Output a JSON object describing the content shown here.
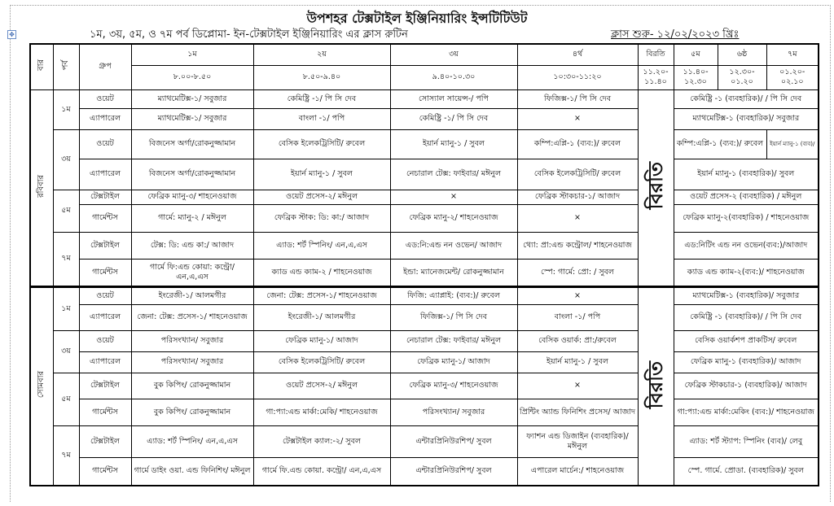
{
  "title": "উপশহর টেক্সটাইল ইঞ্জিনিয়ারিং ইন্সটিটিউট",
  "subtitle": "১ম, ৩য়, ৫ম, ও ৭ম পর্ব ডিপ্লোমা- ইন-টেক্সটাইল ইঞ্জিনিয়ারিং এর ক্লাস রুটিন",
  "class_start": "ক্লাস শুরু- ১২/০২/২০২৩ খ্রিঃ",
  "header": {
    "day": "বার",
    "semester": "পর্ব",
    "group": "গ্রুপ",
    "periods": [
      {
        "label": "১ম",
        "time": "৮.০০-৮.৫০"
      },
      {
        "label": "২য়",
        "time": "৮.৫০-৯.৪০"
      },
      {
        "label": "৩য়",
        "time": "৯.৪০-১০.৩০"
      },
      {
        "label": "৪র্থ",
        "time": "১০:৩০-১১:২০"
      },
      {
        "label": "বিরতি",
        "time": "১১.২০- ১১.৪০"
      },
      {
        "label": "৫ম",
        "time": "১১.৪০- ১২.৩০"
      },
      {
        "label": "৬ষ্ঠ",
        "time": "১২.৩০- ০১.২০"
      },
      {
        "label": "৭ম",
        "time": "০১.২০- ০২.১০"
      }
    ]
  },
  "break_label": "বিরতি",
  "days": [
    {
      "name": "রবিবার",
      "rows": [
        {
          "sem": "১ম",
          "group": "ওয়েট",
          "cells": [
            "ম্যাথমেটিক্স-১/ সবুজার",
            "কেমিষ্ট্রি -১/ পি সি দেব",
            "সোস্যাল সায়েন্স-/ পপি",
            "ফিজিক্স-১/ পি সি দেব",
            "কেমিষ্ট্রি -১ (ব্যবহারিক)/ / পি সি দেব"
          ]
        },
        {
          "sem": "",
          "group": "এ্যাপারেল",
          "cells": [
            "ম্যাথমেটিক্স-১/ সবুজার",
            "বাংলা -১/ পপি",
            "কেমিষ্ট্রি -১/ পি সি দেব",
            "×",
            "ম্যাথমেটিক্স-১ (ব্যবহারিক)/ সবুজার"
          ]
        },
        {
          "sem": "৩য়",
          "group": "ওয়েট",
          "cells": [
            "বিজনেস অর্গা/রোকনুজ্জামান",
            "বেসিক ইলেকট্রিসিটি/ রুবেল",
            "ইয়ার্ন ম্যানু-১ / সুবল",
            "কম্পি:এপ্লি-১ (ব্যব:)/ রুবেল",
            "কম্পি:এপ্লি-১ (ব্যব:)/ রুবেল"
          ],
          "extra": "ইয়ার্ন ম্যানু-১ (ব্যব)/"
        },
        {
          "sem": "",
          "group": "এ্যাপারেল",
          "cells": [
            "বিজনেস অর্গা/রোকনুজ্জামান",
            "ইয়ার্ন ম্যানু-১ / সুবল",
            "নেচারাল টেক্স: ফাইবার/ মঈনুল",
            "বেসিক ইলেকট্রিসিটি/ রুবেল",
            "ইয়ার্ন ম্যানু-১ (ব্যবহারিক)/ সুবল"
          ]
        },
        {
          "sem": "৫ম",
          "group": "টেক্সটাইল",
          "cells": [
            "ফেব্রিক ম্যানু-৩/ শাহনেওয়াজ",
            "ওয়েট প্রসেস-২/ মঈনুল",
            "×",
            "ফেব্রিক স্টাকচার-১/ আজাদ",
            "ওয়েট প্রসেস-২ (ব্যবহারিক) / মঈনুল"
          ]
        },
        {
          "sem": "",
          "group": "গার্মেন্টস",
          "cells": [
            "গার্মে: ম্যানু-২ / মঈনুল",
            "ফেব্রিক স্টাক: ডি: কা:/ আজাদ",
            "ফেব্রিক ম্যানু-২/ শাহনেওয়াজ",
            "×",
            "ফেব্রিক ম্যানু-২(ব্যবহারিক) / শাহনেওয়াজ"
          ]
        },
        {
          "sem": "৭ম",
          "group": "টেক্সটাইল",
          "cells": [
            "টেক্স: ডি: এন্ড কা:/ আজাদ",
            "এ্যাড: শর্ট স্পিনিং/ এন,এ,এস",
            "এড:নি:এন্ড নন ওভেন/ আজাদ",
            "থ্যো: প্রা:এন্ড কন্ট্রোল/ শাহনেওয়াজ",
            "এড:নিটিং এন্ড নন ওভেন(ব্যব:)/আজাদ"
          ]
        },
        {
          "sem": "",
          "group": "গার্মেন্টস",
          "cells": [
            "গার্মে ফি:এন্ড কোয়া: কন্ট্রো/ এন,এ,এস",
            "ক্যাড এন্ড ক্যাম-২ / শাহনেওয়াজ",
            "ইন্ডা: ম্যানেজমেন্ট/ রোকনুজ্জামান",
            "স্পে: গার্মে: প্রো: / সুবল",
            "ক্যাড এন্ড ক্যাম-২(ব্যব:)/ শাহনেওয়াজ"
          ]
        }
      ]
    },
    {
      "name": "সোমবার",
      "rows": [
        {
          "sem": "১ম",
          "group": "ওয়েট",
          "cells": [
            "ইংরেজী-১/ আলমগীর",
            "জেনা: টেক্স: প্রসেস-১/ শাহনেওয়াজ",
            "ফিজি: এ্যাপ্লাই: (ব্যব:)/ রুবেল",
            "×",
            "ম্যাথমেটিক্স-১ (ব্যবহারিক)/ সবুজার"
          ]
        },
        {
          "sem": "",
          "group": "এ্যাপারেল",
          "cells": [
            "জেনা: টেক্স: প্রসেস-১/ শাহনেওয়াজ",
            "ইংরেজী-১/ আলমগীর",
            "ফিজিক্স-১/ পি সি দেব",
            "বাংলা -১/ পপি",
            "কেমিষ্ট্রি -১ (ব্যবহারিক)/ / পি সি দেব"
          ]
        },
        {
          "sem": "৩য়",
          "group": "ওয়েট",
          "cells": [
            "পরিসংখ্যান/ সবুজার",
            "ফেব্রিক ম্যানু-১/ আজাদ",
            "নেচারাল টেক্স: ফাইবার/ মঈনুল",
            "বেসিক ওয়ার্ক: প্রা:/রুবেল",
            "বেসিক ওয়ার্কশপ প্রাকটিস/ রুবেল"
          ]
        },
        {
          "sem": "",
          "group": "এ্যাপারেল",
          "cells": [
            "পরিসংখ্যান/ সবুজার",
            "বেসিক ইলেকট্রিসিটি/ রুবেল",
            "ফেব্রিক ম্যানু-১/ আজাদ",
            "ইয়ার্ন ম্যানু-১ / সুবল",
            "ফেব্রিক ম্যানু-১ (ব্যবহারিক)/ আজাদ"
          ]
        },
        {
          "sem": "৫ম",
          "group": "টেক্সটাইল",
          "cells": [
            "বুক কিপিং/ রোকনুজ্জামান",
            "ওয়েট প্রসেস-২/ মঈনুল",
            "ফেব্রিক ম্যানু-৩/ শাহনেওয়াজ",
            "×",
            "ফেব্রিক স্টাকচার-১ (ব্যবহারিক)/ আজাদ"
          ]
        },
        {
          "sem": "",
          "group": "গার্মেন্টস",
          "cells": [
            "বুক কিপিং/ রোকনুজ্জামান",
            "গা:প্যা:এন্ড মার্কা:মেকি/ শাহনেওয়াজ",
            "পরিসংখ্যান/ সবুজার",
            "প্রিন্টিং অ্যান্ড ফিনিশিং প্রসেস/ আজাদ",
            "গা:প্যা:এন্ড মার্কা:মেকিং (ব্যব:)/ শাহনেওয়াজ"
          ]
        },
        {
          "sem": "৭ম",
          "group": "টেক্সটাইল",
          "cells": [
            "এ্যাড: শর্ট স্পিনিং/ এন,এ,এস",
            "টেক্সটাইল ক্যাল:-২/ সুবল",
            "এন্টারপ্রিনিউরশিপ/ সুবল",
            "ফ্যাশন এন্ড ডিজাইন (ব্যবহারিক)/ মঈনুল",
            "এ্যাড: শর্ট স্ট্যাপ: স্পিনিং (ব্যব)/ লেবু"
          ]
        },
        {
          "sem": "",
          "group": "গার্মেন্টস",
          "cells": [
            "গার্মে ডাইং ওয়া. এন্ড ফিনিশিং/ মঈনুল",
            "গার্মে ফি.এন্ড কোয়া. কন্ট্রো/ এন,এ,এস",
            "এন্টারপ্রিনিউরশিপ/ সুবল",
            "এপারেল মার্চেন:/ শাহনেওয়াজ",
            "স্পে. গার্মে. প্রোডা. (ব্যবহারিক)/ সুবল"
          ]
        }
      ]
    }
  ]
}
